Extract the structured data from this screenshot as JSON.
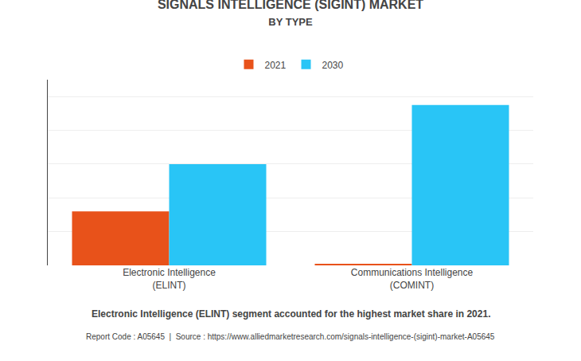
{
  "chart_data": {
    "type": "bar",
    "title": "SIGNALS INTELLIGENCE (SIGINT) MARKET",
    "subtitle": "BY TYPE",
    "categories": [
      "Electronic Intelligence\n(ELINT)",
      "Communications Intelligence\n(COMINT)"
    ],
    "series": [
      {
        "name": "2021",
        "color": "#E8521A",
        "values": [
          3.2,
          0.08
        ]
      },
      {
        "name": "2030",
        "color": "#29C5F6",
        "values": [
          6.0,
          9.5
        ]
      }
    ],
    "ylim": [
      0,
      11
    ],
    "yticks": [
      0,
      2,
      4,
      6,
      8,
      10
    ],
    "grid": true,
    "legend": "top",
    "tick_labels": "x",
    "annotations": [
      "Electronic Intelligence (ELINT) segment accounted for the highest market share in 2021.",
      "Report Code : A05645  |  Source : https://www.alliedmarketresearch.com/signals-intelligence-(sigint)-market-A05645"
    ]
  }
}
